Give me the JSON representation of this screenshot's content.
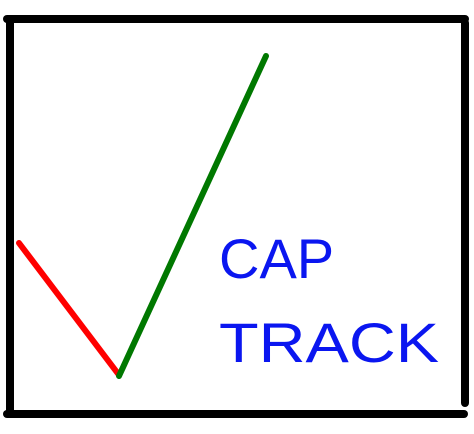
{
  "logo": {
    "line1": "CAP",
    "line2": "TRACK",
    "colors": {
      "frame": "#000000",
      "text": "#0a16f0",
      "left_stroke": "#ff0000",
      "right_stroke": "#007800"
    }
  }
}
